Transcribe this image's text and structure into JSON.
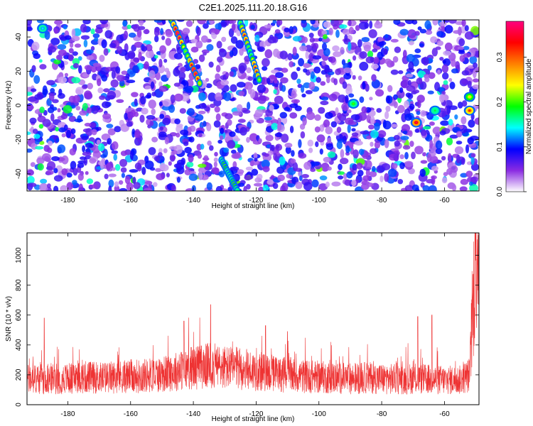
{
  "title": "C2E1.2025.111.20.18.G16",
  "chart_data": [
    {
      "type": "heatmap",
      "title": "C2E1.2025.111.20.18.G16",
      "xlabel": "Height of straight line (km)",
      "ylabel": "Frequency (Hz)",
      "xlim": [
        -193,
        -49
      ],
      "ylim": [
        -50,
        50
      ],
      "xticks": [
        -180,
        -160,
        -140,
        -120,
        -100,
        -80,
        -60
      ],
      "yticks": [
        -40,
        -20,
        0,
        20,
        40
      ],
      "colorbar": {
        "label": "Normalized spectral amplitude",
        "range": [
          0,
          0.38
        ],
        "ticks": [
          0.0,
          0.1,
          0.2,
          0.3
        ],
        "colormap": [
          "#ffffff",
          "#8a2be2",
          "#0000ff",
          "#00ffff",
          "#00ff00",
          "#ffff00",
          "#ff8000",
          "#ff0000",
          "#ff0080"
        ]
      },
      "features": [
        {
          "kind": "streak",
          "x_start": -147,
          "y_start": 50,
          "x_end": -138,
          "y_end": 13,
          "peak": 0.38
        },
        {
          "kind": "streak",
          "x_start": -125,
          "y_start": 48,
          "x_end": -119,
          "y_end": 15,
          "peak": 0.33
        },
        {
          "kind": "streak",
          "x_start": -131,
          "y_start": -32,
          "x_end": -126,
          "y_end": -50,
          "peak": 0.25
        },
        {
          "kind": "blob",
          "x": -69,
          "y": -10,
          "peak": 0.36
        },
        {
          "kind": "blob",
          "x": -52,
          "y": -3,
          "peak": 0.32
        },
        {
          "kind": "blob",
          "x": -52,
          "y": 5,
          "peak": 0.25
        },
        {
          "kind": "blob",
          "x": -89,
          "y": 1,
          "peak": 0.2
        },
        {
          "kind": "blob",
          "x": -63,
          "y": -3,
          "peak": 0.18
        },
        {
          "kind": "blob",
          "x": -188,
          "y": 45,
          "peak": 0.14
        }
      ]
    },
    {
      "type": "line",
      "xlabel": "Height of straight line (km)",
      "ylabel": "SNR (10 * v/v)",
      "xlim": [
        -193,
        -49
      ],
      "ylim": [
        0,
        1150
      ],
      "xticks": [
        -180,
        -160,
        -140,
        -120,
        -100,
        -80,
        -60
      ],
      "yticks": [
        0,
        200,
        400,
        600,
        800,
        1000
      ],
      "color": "#ee3333",
      "series": [
        {
          "x": [
            -193,
            -185,
            -180,
            -175,
            -170,
            -165,
            -160,
            -155,
            -150,
            -145,
            -140,
            -135,
            -130,
            -125,
            -120,
            -115,
            -110,
            -105,
            -100,
            -95,
            -90,
            -85,
            -80,
            -75,
            -70,
            -65,
            -60,
            -55,
            -52,
            -51,
            -50
          ],
          "y": [
            170,
            175,
            175,
            185,
            180,
            185,
            190,
            195,
            205,
            225,
            250,
            260,
            250,
            240,
            225,
            210,
            200,
            190,
            185,
            180,
            175,
            180,
            175,
            170,
            175,
            170,
            165,
            165,
            200,
            600,
            1150
          ]
        }
      ],
      "peaks": [
        {
          "x": -134.5,
          "y": 670
        },
        {
          "x": -187.5,
          "y": 580
        },
        {
          "x": -68.5,
          "y": 590
        },
        {
          "x": -64,
          "y": 600
        },
        {
          "x": -143,
          "y": 560
        },
        {
          "x": -117,
          "y": 530
        },
        {
          "x": -110,
          "y": 490
        }
      ]
    }
  ]
}
